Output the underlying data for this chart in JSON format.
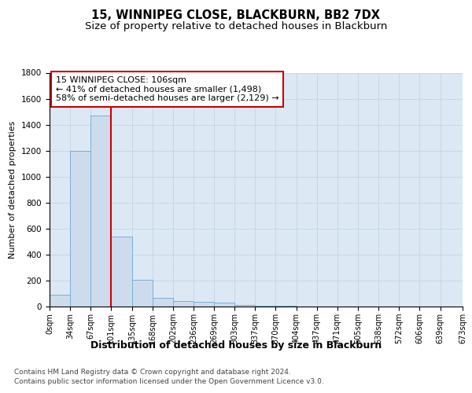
{
  "title1": "15, WINNIPEG CLOSE, BLACKBURN, BB2 7DX",
  "title2": "Size of property relative to detached houses in Blackburn",
  "xlabel": "Distribution of detached houses by size in Blackburn",
  "ylabel": "Number of detached properties",
  "bin_edges": [
    0,
    33.5,
    67,
    100.5,
    134,
    167.5,
    201,
    234.5,
    268,
    301.5,
    335,
    368.5,
    402,
    435.5,
    469,
    502.5,
    536,
    569.5,
    603,
    636.5,
    673
  ],
  "bar_heights": [
    90,
    1200,
    1470,
    540,
    205,
    65,
    45,
    35,
    28,
    10,
    8,
    5,
    3,
    2,
    1,
    1,
    0,
    0,
    0,
    0
  ],
  "bar_color": "#ccdcec",
  "bar_edgecolor": "#7bafd4",
  "grid_color": "#c8d8e8",
  "background_color": "#dce9f5",
  "red_line_x": 100.5,
  "annotation_line1": "15 WINNIPEG CLOSE: 106sqm",
  "annotation_line2": "← 41% of detached houses are smaller (1,498)",
  "annotation_line3": "58% of semi-detached houses are larger (2,129) →",
  "annotation_box_color": "#cc0000",
  "ylim": [
    0,
    1800
  ],
  "xlim": [
    0,
    673
  ],
  "tick_labels": [
    "0sqm",
    "34sqm",
    "67sqm",
    "101sqm",
    "135sqm",
    "168sqm",
    "202sqm",
    "236sqm",
    "269sqm",
    "303sqm",
    "337sqm",
    "370sqm",
    "404sqm",
    "437sqm",
    "471sqm",
    "505sqm",
    "538sqm",
    "572sqm",
    "606sqm",
    "639sqm",
    "673sqm"
  ],
  "footer1": "Contains HM Land Registry data © Crown copyright and database right 2024.",
  "footer2": "Contains public sector information licensed under the Open Government Licence v3.0.",
  "title1_fontsize": 10.5,
  "title2_fontsize": 9.5,
  "xlabel_fontsize": 9,
  "ylabel_fontsize": 8,
  "tick_fontsize": 7,
  "annotation_fontsize": 8,
  "footer_fontsize": 6.5
}
